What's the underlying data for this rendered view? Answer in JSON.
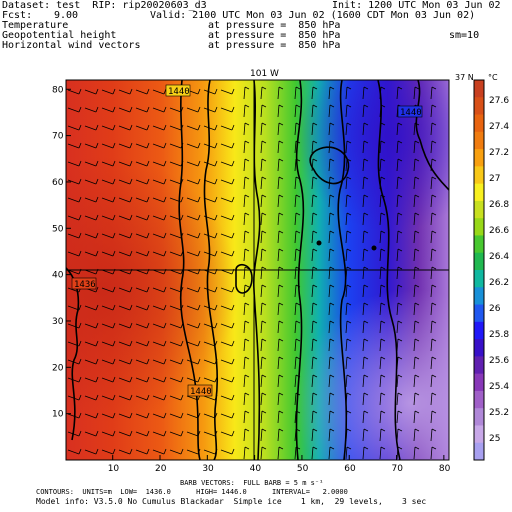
{
  "header": {
    "dataset": "Dataset: test  RIP: rip20020603_d3",
    "init": "Init: 1200 UTC Mon 03 Jun 02",
    "fcst_label": "Fcst:",
    "fcst_value": "9.00",
    "valid": "Valid: 2100 UTC Mon 03 Jun 02 (1600 CDT Mon 03 Jun 02)",
    "field1": "Temperature",
    "field1_pressure": "at pressure =  850 hPa",
    "field2": "Geopotential height",
    "field2_pressure": "at pressure =  850 hPa",
    "field3": "Horizontal wind vectors",
    "field3_pressure": "at pressure =  850 hPa",
    "sm": "sm=10"
  },
  "map": {
    "top_label": "101 W",
    "right_label": "37 N",
    "x_ticks": [
      "10",
      "20",
      "30",
      "40",
      "50",
      "60",
      "70",
      "80"
    ],
    "y_ticks": [
      "80",
      "70",
      "60",
      "50",
      "40",
      "30",
      "20",
      "10"
    ],
    "contour_labels": [
      "1440",
      "1440",
      "1436",
      "1440"
    ],
    "h_cross": 40,
    "v_cross": 38
  },
  "colorbar": {
    "unit": "°C",
    "labels": [
      "27.6",
      "27.4",
      "27.2",
      "27",
      "26.8",
      "26.6",
      "26.4",
      "26.2",
      "26",
      "25.8",
      "25.6",
      "25.4",
      "25.2",
      "25"
    ],
    "colors": [
      "#c84020",
      "#d85018",
      "#e86410",
      "#f07c10",
      "#f8a010",
      "#f8c818",
      "#f8f020",
      "#c8e020",
      "#98d818",
      "#48c830",
      "#20b850",
      "#10b8a0",
      "#1890d8",
      "#2058f0",
      "#2018f8",
      "#3810c8",
      "#6020b0",
      "#8838b8",
      "#a060c8",
      "#b088d8",
      "#c8a8e8",
      "#a8a0f0"
    ]
  },
  "footer": {
    "line1": "BARB VECTORS:  FULL BARB = 5 m s⁻¹",
    "line2": "CONTOURS:  UNITS=m  LOW=  1436.0      HIGH= 1446.0      INTERVAL=   2.0000",
    "line3": "Model info: V3.5.0 No Cumulus Blackadar  Simple ice    1 km,  29 levels,    3 sec"
  }
}
